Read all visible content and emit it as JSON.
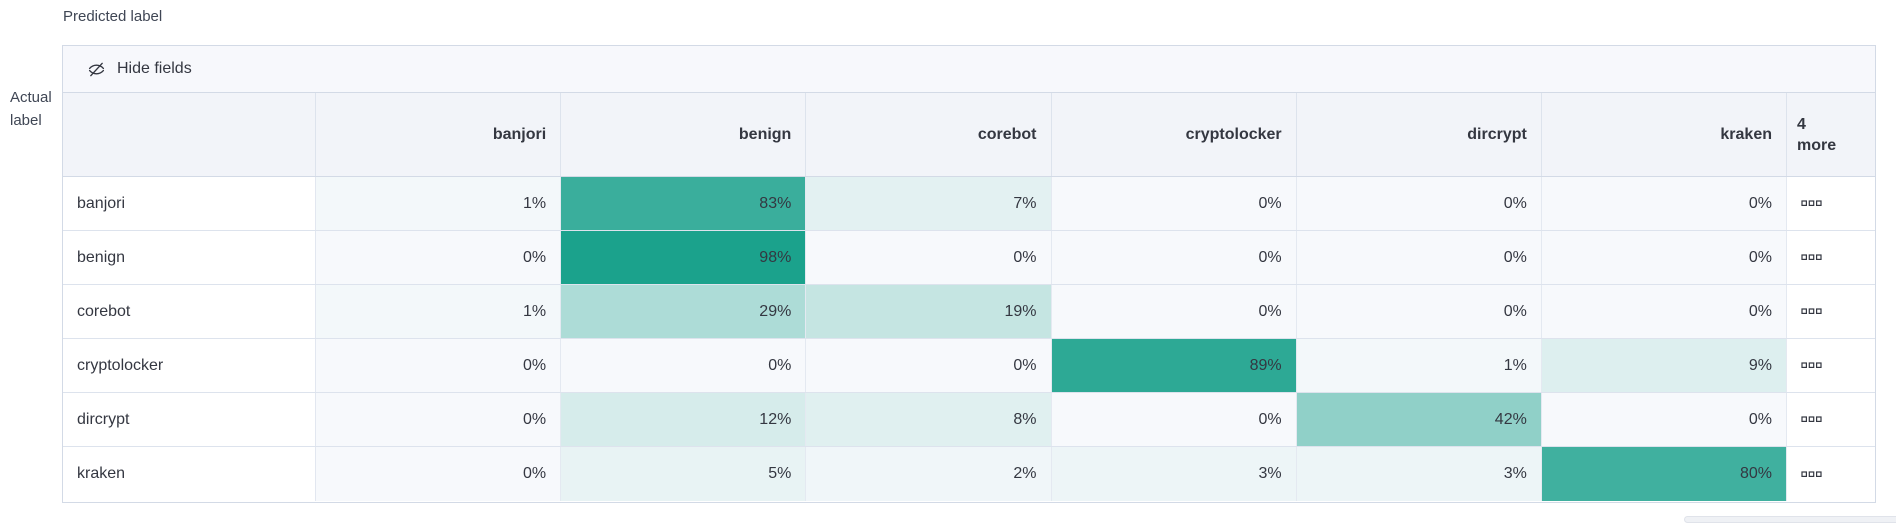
{
  "axes": {
    "predicted": "Predicted label",
    "actual_lines": [
      "Actual",
      "label"
    ]
  },
  "toolbar": {
    "hide_fields_label": "Hide fields",
    "icon": "eye-closed-icon"
  },
  "ui": {
    "more_column": {
      "line1": "4",
      "line2": "more"
    },
    "row_actions_icon": "boxes-horizontal-icon"
  },
  "colors": {
    "heatmap_zero": "#F7F9FC",
    "heatmap_max": "#17A08A",
    "header_bg": "#F2F4F9",
    "toolbar_bg": "#F7F8FC",
    "border": "#D3DAE6",
    "text": "#343741"
  },
  "chart_data": {
    "type": "heatmap",
    "xlabel": "Predicted label",
    "ylabel": "Actual label",
    "x_categories": [
      "banjori",
      "benign",
      "corebot",
      "cryptolocker",
      "dircrypt",
      "kraken"
    ],
    "x_hidden_columns_label": "4 more",
    "y_categories": [
      "banjori",
      "benign",
      "corebot",
      "cryptolocker",
      "dircrypt",
      "kraken"
    ],
    "unit": "%",
    "values_percent": [
      [
        1,
        83,
        7,
        0,
        0,
        0
      ],
      [
        0,
        98,
        0,
        0,
        0,
        0
      ],
      [
        1,
        29,
        19,
        0,
        0,
        0
      ],
      [
        0,
        0,
        0,
        89,
        1,
        9
      ],
      [
        0,
        12,
        8,
        0,
        42,
        0
      ],
      [
        0,
        5,
        2,
        3,
        3,
        80
      ]
    ],
    "color_scale": {
      "domain": [
        0,
        100
      ],
      "min_color": "#F7F9FC",
      "max_color": "#17A08A"
    },
    "legend_position": "none",
    "grid": true
  }
}
